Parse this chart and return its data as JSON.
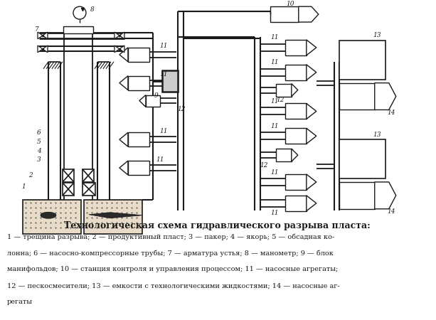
{
  "title": "Технологическая схема гидравлического разрыва пласта:",
  "caption_lines": [
    "1 — трещина разрыва; 2 — продуктивный пласт; 3 — пакер; 4 — якорь; 5 — обсадная ко-",
    "лонна; 6 — насосно-компрессорные трубы; 7 — арматура устья; 8 — манометр; 9 — блок",
    "манифольдов; 10 — станция контроля и управления процессом; 11 — насосные агрегаты;",
    "12 — пескосмесители; 13 — емкости с технологическими жидкостями; 14 — насосные аг-",
    "регаты"
  ],
  "bg_color": "#ffffff",
  "line_color": "#1a1a1a",
  "label_color": "#1a1a1a"
}
